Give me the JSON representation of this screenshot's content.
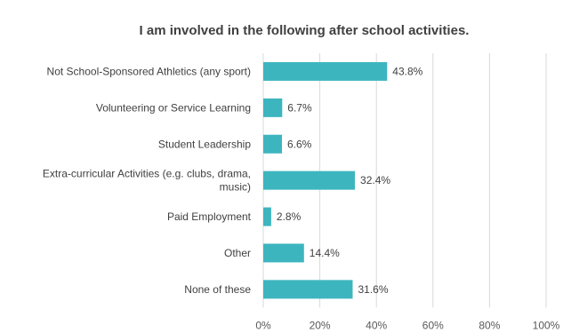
{
  "chart_data": {
    "type": "bar",
    "orientation": "horizontal",
    "title": "I am involved in the following after school activities.",
    "categories": [
      [
        "Not School-Sponsored Athletics (any sport)"
      ],
      [
        "Volunteering or Service Learning"
      ],
      [
        "Student Leadership"
      ],
      [
        "Extra-curricular Activities (e.g. clubs, drama,",
        "music)"
      ],
      [
        "Paid Employment"
      ],
      [
        "Other"
      ],
      [
        "None of these"
      ]
    ],
    "values": [
      43.8,
      6.7,
      6.6,
      32.4,
      2.8,
      14.4,
      31.6
    ],
    "data_labels": [
      "43.8%",
      "6.7%",
      "6.6%",
      "32.4%",
      "2.8%",
      "14.4%",
      "31.6%"
    ],
    "xlim": [
      0,
      100
    ],
    "xticks": [
      "0%",
      "20%",
      "40%",
      "60%",
      "80%",
      "100%"
    ],
    "grid": "vertical",
    "bar_color": "#3DB5BF",
    "grid_color": "#D9D9D9"
  }
}
